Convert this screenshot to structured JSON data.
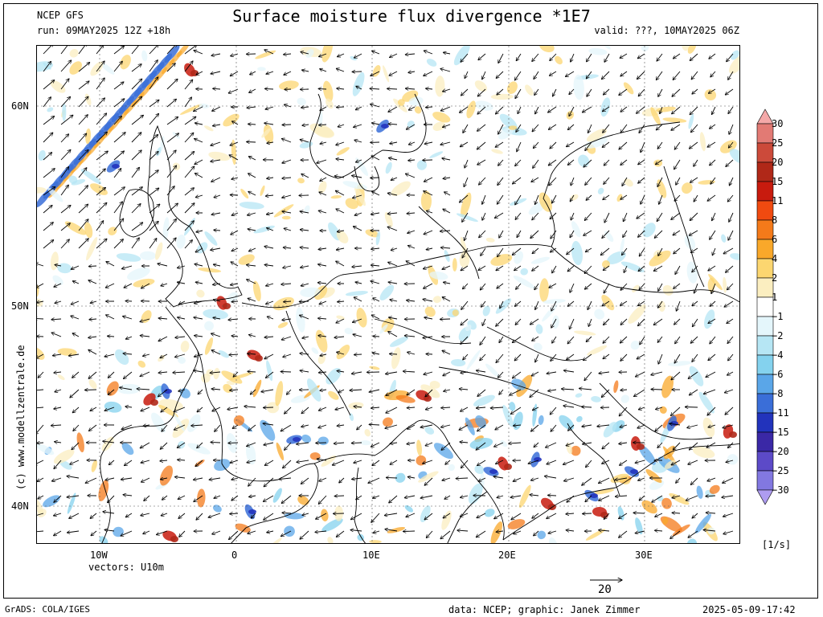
{
  "header": {
    "model": "NCEP GFS",
    "run": "run: 09MAY2025 12Z +18h",
    "title": "Surface moisture flux divergence *1E7",
    "valid": "valid: ???, 10MAY2025 06Z"
  },
  "axes": {
    "lat_labels": [
      "60N",
      "50N",
      "40N"
    ],
    "lon_labels": [
      "10W",
      "0",
      "10E",
      "20E",
      "30E"
    ]
  },
  "vectors": {
    "label": "vectors: U10m",
    "ref_value": "20"
  },
  "colorbar": {
    "unit": "[1/s]",
    "levels": [
      "30",
      "25",
      "20",
      "15",
      "11",
      "8",
      "6",
      "4",
      "2",
      "1",
      "−1",
      "−2",
      "−4",
      "−6",
      "−8",
      "−11",
      "−15",
      "−20",
      "−25",
      "−30"
    ],
    "colors": [
      "#f4a8a8",
      "#e27a74",
      "#cc4a3a",
      "#b02818",
      "#c81b0e",
      "#f04a10",
      "#f47a1a",
      "#f9a82a",
      "#fcd670",
      "#fbeec0",
      "#ffffff",
      "#e4f6fb",
      "#b6e6f4",
      "#84d2ee",
      "#5aa6e8",
      "#3a6ed8",
      "#2233bc",
      "#3a28a6",
      "#5c4ac8",
      "#8278e0",
      "#ae9cf0"
    ]
  },
  "footer": {
    "grads": "GrADS: COLA/IGES",
    "credit_data": "data: NCEP; graphic: Janek Zimmer",
    "timestamp": "2025-05-09-17:42",
    "watermark": "(c) www.modellzentrale.de"
  }
}
